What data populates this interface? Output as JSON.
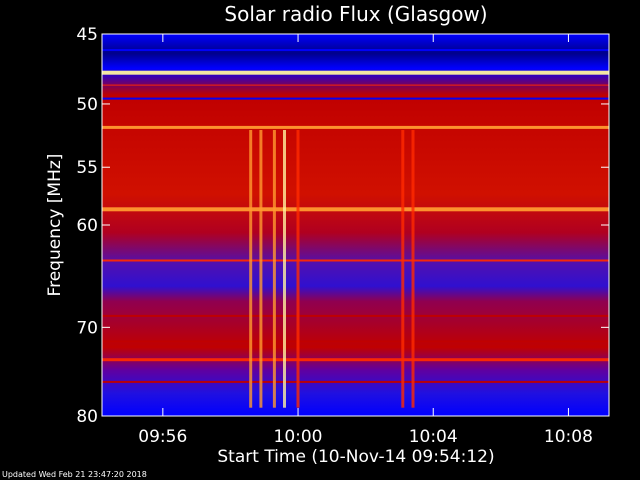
{
  "chart_data": {
    "type": "heatmap",
    "title": "Solar radio Flux (Glasgow)",
    "xlabel": "Start Time (10-Nov-14 09:54:12)",
    "ylabel": "Frequency [MHz]",
    "y_ticks": [
      45,
      50,
      55,
      60,
      70,
      80
    ],
    "y_scale": "log",
    "ylim": [
      45,
      80
    ],
    "x_ticks": [
      "09:56",
      "10:00",
      "10:04",
      "10:08"
    ],
    "x_tick_minutes": [
      1.8,
      5.8,
      9.8,
      13.8
    ],
    "xlim_minutes": [
      0,
      15
    ],
    "colormap": [
      "#00006e",
      "#0000ff",
      "#8000a0",
      "#c00000",
      "#ff2a00",
      "#ff9a30",
      "#fff2a0"
    ],
    "bands": [
      {
        "freq": 46.1,
        "intensity": 0.15,
        "width": 2
      },
      {
        "freq": 47.7,
        "intensity": 0.97,
        "width": 4
      },
      {
        "freq": 48.6,
        "intensity": 0.65,
        "width": 1
      },
      {
        "freq": 49.6,
        "intensity": 0.12,
        "width": 2
      },
      {
        "freq": 51.8,
        "intensity": 0.9,
        "width": 3
      },
      {
        "freq": 58.6,
        "intensity": 0.82,
        "width": 4
      },
      {
        "freq": 63.3,
        "intensity": 0.62,
        "width": 2
      },
      {
        "freq": 68.8,
        "intensity": 0.5,
        "width": 2
      },
      {
        "freq": 71.5,
        "intensity": 0.55,
        "width": 2
      },
      {
        "freq": 73.5,
        "intensity": 0.72,
        "width": 3
      },
      {
        "freq": 76.0,
        "intensity": 0.45,
        "width": 2
      }
    ],
    "bursts": [
      {
        "minute": 4.4,
        "intensity": 0.88
      },
      {
        "minute": 4.7,
        "intensity": 0.85
      },
      {
        "minute": 5.1,
        "intensity": 0.75
      },
      {
        "minute": 5.4,
        "intensity": 0.92
      },
      {
        "minute": 5.8,
        "intensity": 0.7
      },
      {
        "minute": 8.9,
        "intensity": 0.65
      },
      {
        "minute": 9.2,
        "intensity": 0.6
      }
    ]
  },
  "footer": "Updated Wed Feb 21 23:47:20 2018"
}
